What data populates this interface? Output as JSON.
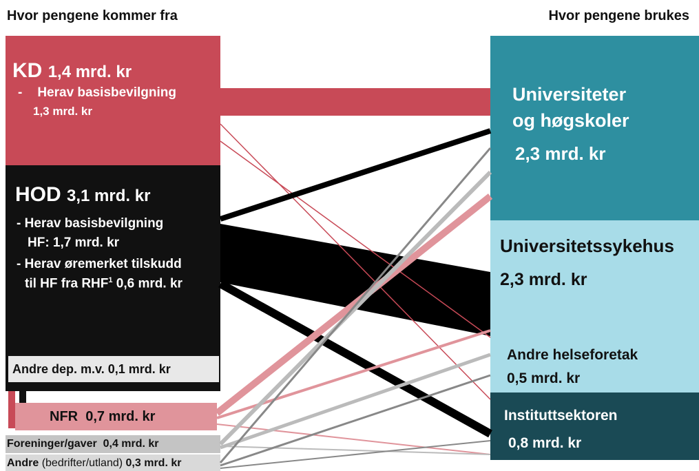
{
  "header": {
    "left": "Hvor pengene kommer fra",
    "right": "Hvor pengene brukes"
  },
  "sources": {
    "kd": {
      "name": "KD",
      "amount": "1,4 mrd. kr",
      "dash": "-",
      "line1": "Herav basisbevilgning",
      "line2": "1,3 mrd. kr"
    },
    "hod": {
      "name": "HOD",
      "amount": "3,1 mrd. kr",
      "line1": "- Herav basisbevilgning",
      "line2": "HF: 1,7 mrd. kr",
      "line3": "- Herav øremerket tilskudd",
      "line4": "til HF fra RHF",
      "footnote": "1",
      "line4b": "0,6 mrd. kr"
    },
    "andre_dep": {
      "label": "Andre dep. m.v. 0,1 mrd. kr"
    },
    "nfr": {
      "name": "NFR",
      "amount": "0,7 mrd. kr"
    },
    "foreninger": {
      "label": "Foreninger/gaver",
      "amount": "0,4 mrd. kr"
    },
    "andre": {
      "name": "Andre",
      "detail": "(bedrifter/utland)",
      "amount": "0,3 mrd. kr"
    }
  },
  "targets": {
    "uh": {
      "line1": "Universiteter",
      "line2": "og høgskoler",
      "amount": "2,3 mrd. kr"
    },
    "us": {
      "name": "Universitetssykehus",
      "amount": "2,3 mrd. kr"
    },
    "hf": {
      "name": "Andre helseforetak",
      "amount": "0,5 mrd. kr"
    },
    "inst": {
      "name": "Instituttsektoren",
      "amount": "0,8 mrd. kr"
    }
  }
}
